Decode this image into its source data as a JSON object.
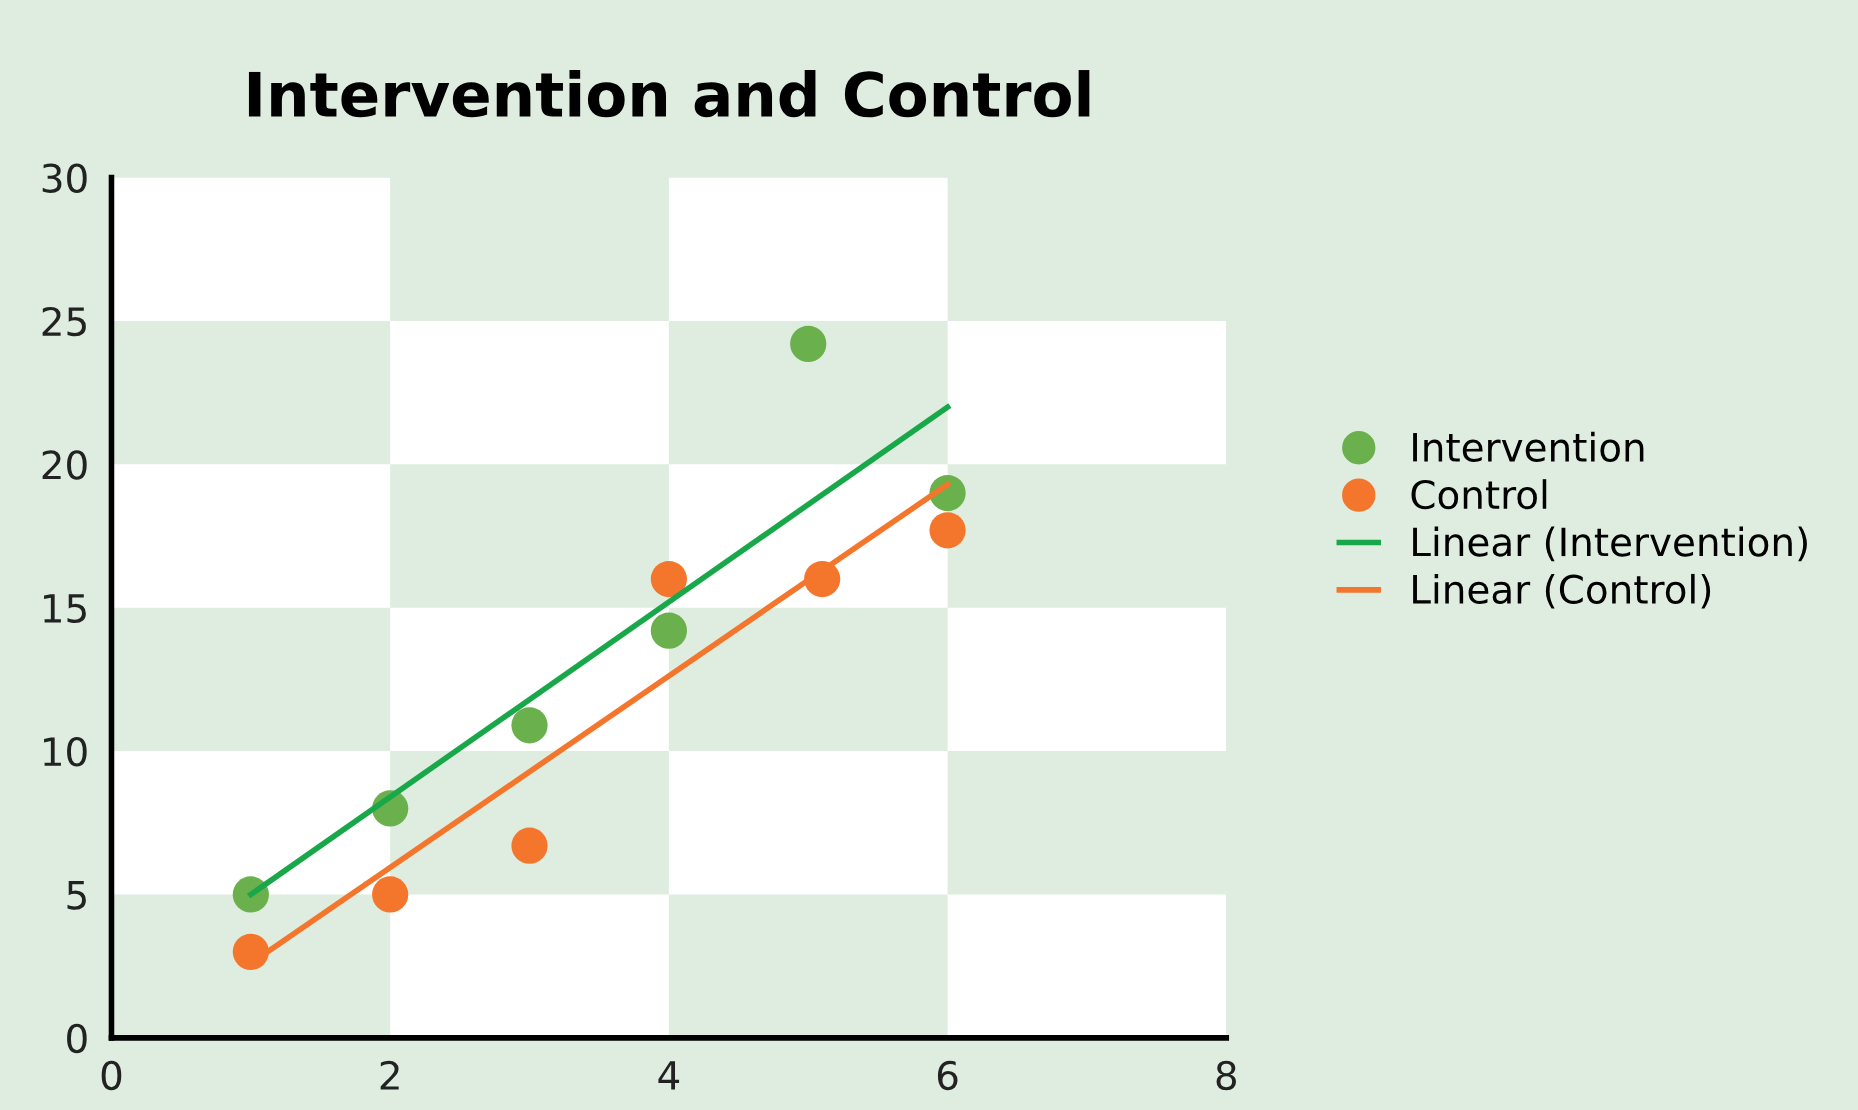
{
  "chart_data": {
    "type": "scatter",
    "title": "Intervention and Control",
    "xlim": [
      0,
      8
    ],
    "xticks": [
      0,
      2,
      4,
      6,
      8
    ],
    "ylim": [
      0,
      30
    ],
    "yticks": [
      0,
      5,
      10,
      15,
      20,
      25,
      30
    ],
    "grid": false,
    "legend": "right",
    "series": [
      {
        "name": "Intervention",
        "marker": "circle",
        "color": "#6ab04c",
        "x": [
          1,
          2,
          3,
          4,
          5,
          6
        ],
        "values": [
          5,
          8,
          10.9,
          14.2,
          24.2,
          19
        ]
      },
      {
        "name": "Control",
        "marker": "circle",
        "color": "#f4762c",
        "x": [
          1,
          2,
          3,
          4,
          5.1,
          6
        ],
        "values": [
          3,
          5,
          6.7,
          16,
          16,
          17.7
        ]
      },
      {
        "name": "Linear (Intervention)",
        "type": "line",
        "marker": "none",
        "color": "#18a84a",
        "x": [
          1,
          6
        ],
        "values": [
          5,
          22
        ]
      },
      {
        "name": "Linear (Control)",
        "type": "line",
        "marker": "none",
        "color": "#f4762c",
        "x": [
          1,
          6
        ],
        "values": [
          2.6,
          19.3
        ]
      }
    ]
  }
}
